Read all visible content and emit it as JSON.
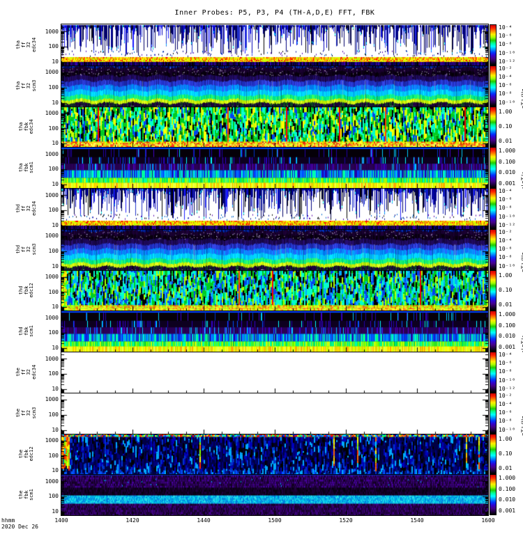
{
  "chart_data": {
    "type": "heatmap",
    "title": "Inner Probes: P5, P3, P4 (TH-A,D,E) FFT, FBK",
    "x_axis": {
      "label": "hhmm",
      "date": "2020 Dec 26",
      "ticks": [
        "1400",
        "1420",
        "1440",
        "1500",
        "1520",
        "1540",
        "1600"
      ],
      "tick_minutes": [
        0,
        20,
        40,
        60,
        80,
        100,
        120
      ],
      "minor_tick_minutes": 5,
      "total_minutes": 120
    },
    "y_axis": {
      "scale": "log",
      "tick_labels": [
        "1000",
        "100",
        "10"
      ],
      "tick_values": [
        1000,
        100,
        10
      ],
      "range_hz": [
        5.6,
        2900
      ]
    },
    "colorbar_gradient": [
      "#cc0000",
      "#ff2200",
      "#ff8800",
      "#ffee00",
      "#aaff00",
      "#22cc00",
      "#00ff99",
      "#00ffff",
      "#0099ff",
      "#0033ff",
      "#3300cc",
      "#440088",
      "#220044",
      "#000000"
    ],
    "panels": [
      {
        "id": "tha-ff-32-edc34",
        "label_lines": [
          "tha",
          "ff",
          "32",
          "edc34"
        ],
        "texture": "fft_e",
        "seed": 11,
        "colorbar": {
          "unit": "(V/m)²/Hz",
          "ticks": [
            "10⁻⁴",
            "10⁻⁶",
            "10⁻⁸",
            "10⁻¹⁰",
            "10⁻¹²"
          ]
        }
      },
      {
        "id": "tha-ff-32-scm3",
        "label_lines": [
          "tha",
          "ff",
          "32",
          "scm3"
        ],
        "texture": "fft_b",
        "seed": 22,
        "colorbar": {
          "unit": "nT²/Hz",
          "ticks": [
            "10⁻²",
            "10⁻⁴",
            "10⁻⁶",
            "10⁻⁸",
            "10⁻¹⁰"
          ]
        }
      },
      {
        "id": "tha-fbk-edc34",
        "label_lines": [
          "tha",
          "fbk",
          "edc34"
        ],
        "texture": "fbk_e",
        "seed": 33,
        "colorbar": {
          "unit": "<|mV/m|>",
          "ticks": [
            "1.00",
            "0.10",
            "0.01"
          ]
        }
      },
      {
        "id": "tha-fbk-scm1",
        "label_lines": [
          "tha",
          "fbk",
          "scm1"
        ],
        "texture": "fbk_b",
        "seed": 44,
        "colorbar": {
          "unit": "<|nT|>",
          "ticks": [
            "1.000",
            "0.100",
            "0.010",
            "0.001"
          ]
        }
      },
      {
        "id": "thd-ff-32-edc34",
        "label_lines": [
          "thd",
          "ff",
          "32",
          "edc34"
        ],
        "texture": "fft_e",
        "seed": 55,
        "colorbar": {
          "unit": "(V/m)²/Hz",
          "ticks": [
            "10⁻⁴",
            "10⁻⁶",
            "10⁻⁸",
            "10⁻¹⁰",
            "10⁻¹²"
          ]
        }
      },
      {
        "id": "thd-ff-32-scm3",
        "label_lines": [
          "thd",
          "ff",
          "32",
          "scm3"
        ],
        "texture": "fft_b",
        "seed": 66,
        "colorbar": {
          "unit": "nT²/Hz",
          "ticks": [
            "10⁻²",
            "10⁻⁴",
            "10⁻⁶",
            "10⁻⁸",
            "10⁻¹⁰"
          ]
        }
      },
      {
        "id": "thd-fbk-edc12",
        "label_lines": [
          "thd",
          "fbk",
          "edc12"
        ],
        "texture": "fbk_e2",
        "seed": 77,
        "colorbar": {
          "unit": "<|mV/m|>",
          "ticks": [
            "1.00",
            "0.10",
            "0.01"
          ]
        }
      },
      {
        "id": "thd-fbk-scm1",
        "label_lines": [
          "thd",
          "fbk",
          "scm1"
        ],
        "texture": "fbk_b",
        "seed": 88,
        "colorbar": {
          "unit": "<|nT|>",
          "ticks": [
            "1.000",
            "0.100",
            "0.010",
            "0.001"
          ]
        }
      },
      {
        "id": "the-ff-32-edc34",
        "label_lines": [
          "the",
          "ff",
          "32",
          "edc34"
        ],
        "texture": "empty",
        "seed": 99,
        "colorbar": {
          "unit": "(V/m)²/Hz",
          "ticks": [
            "10⁻⁴",
            "10⁻⁶",
            "10⁻⁸",
            "10⁻¹⁰",
            "10⁻¹²"
          ]
        }
      },
      {
        "id": "the-ff-32-scm3",
        "label_lines": [
          "the",
          "ff",
          "32",
          "scm3"
        ],
        "texture": "empty",
        "seed": 110,
        "colorbar": {
          "unit": "nT²/Hz",
          "ticks": [
            "10⁻²",
            "10⁻⁴",
            "10⁻⁶",
            "10⁻⁸",
            "10⁻¹⁰"
          ]
        }
      },
      {
        "id": "the-fbk-edc12",
        "label_lines": [
          "the",
          "fbk",
          "edc12"
        ],
        "texture": "fbk_dark",
        "seed": 121,
        "colorbar": {
          "unit": "<|mV/m|>",
          "ticks": [
            "1.00",
            "0.10",
            "0.01"
          ]
        }
      },
      {
        "id": "the-fbk-scm1",
        "label_lines": [
          "the",
          "fbk",
          "scm1"
        ],
        "texture": "fbk_b2",
        "seed": 132,
        "colorbar": {
          "unit": "<|mV/m|>",
          "ticks": [
            "1.000",
            "0.100",
            "0.010",
            "0.001"
          ]
        }
      }
    ]
  },
  "footer": {
    "time_format_label": "hhmm",
    "date_label": "2020 Dec 26"
  }
}
